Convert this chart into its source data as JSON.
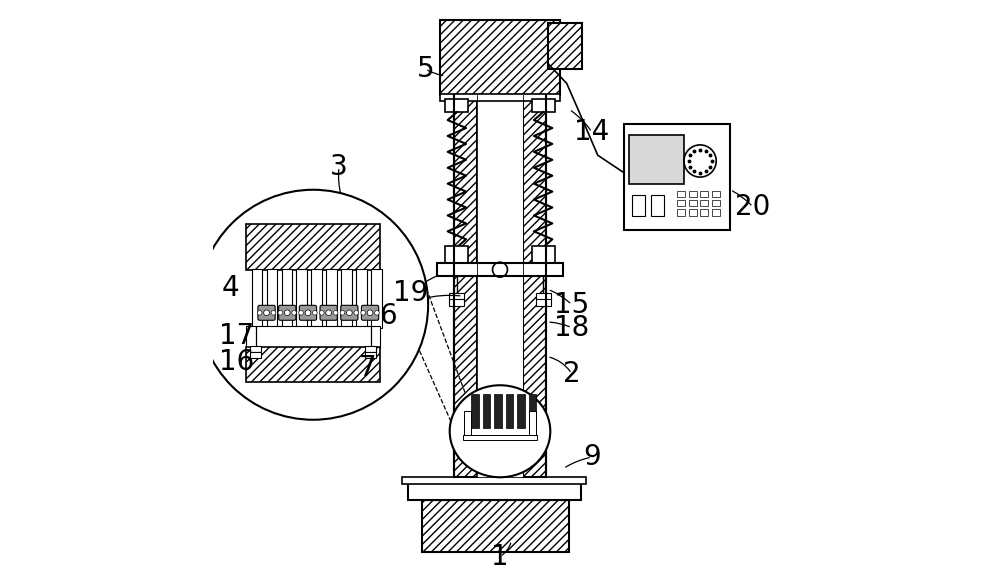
{
  "bg_color": "#ffffff",
  "line_color": "#000000",
  "label_fontsize": 20,
  "figsize": [
    10.0,
    5.75
  ],
  "dpi": 100
}
